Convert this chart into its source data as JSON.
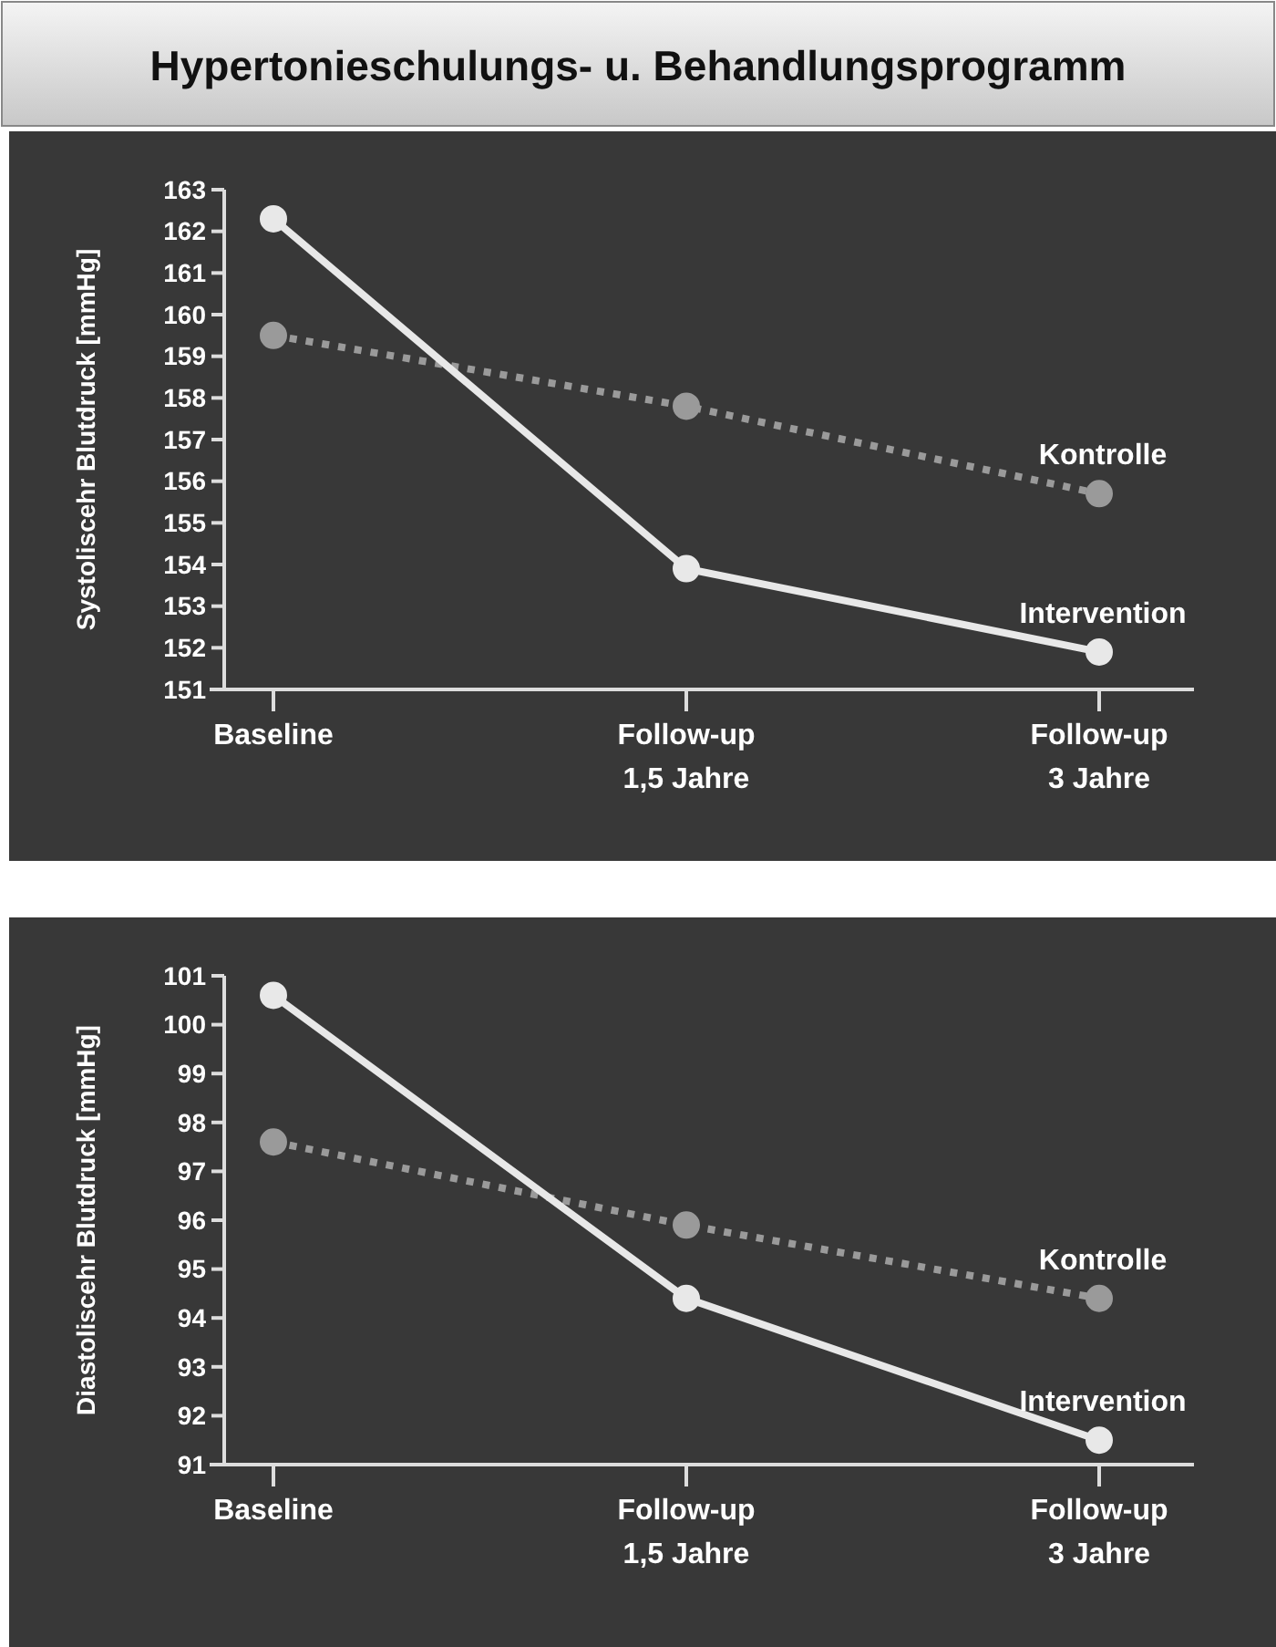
{
  "chart_data": [
    {
      "type": "line",
      "title": "Hypertonieschulungs- u. Behandlungsprogramm",
      "ylabel": "Systoliscehr Blutdruck [mmHg]",
      "categories": [
        "Baseline",
        "Follow-up\n1,5 Jahre",
        "Follow-up\n3 Jahre"
      ],
      "ylim": [
        151,
        163
      ],
      "yticks": [
        151,
        152,
        153,
        154,
        155,
        156,
        157,
        158,
        159,
        160,
        161,
        162,
        163
      ],
      "marker": "circle",
      "grid": false,
      "legend": false,
      "series": [
        {
          "name": "Kontrolle",
          "color": "#9a9a9a",
          "line_style": "dotted",
          "values": [
            159.5,
            157.8,
            155.7
          ]
        },
        {
          "name": "Intervention",
          "color": "#e8e8e8",
          "line_style": "solid",
          "values": [
            162.3,
            153.9,
            151.9
          ]
        }
      ]
    },
    {
      "type": "line",
      "ylabel": "Diastoliscehr Blutdruck [mmHg]",
      "categories": [
        "Baseline",
        "Follow-up\n1,5 Jahre",
        "Follow-up\n3 Jahre"
      ],
      "ylim": [
        91,
        101
      ],
      "yticks": [
        91,
        92,
        93,
        94,
        95,
        96,
        97,
        98,
        99,
        100,
        101
      ],
      "marker": "circle",
      "grid": false,
      "legend": false,
      "series": [
        {
          "name": "Kontrolle",
          "color": "#9a9a9a",
          "line_style": "dotted",
          "values": [
            97.6,
            95.9,
            94.4
          ]
        },
        {
          "name": "Intervention",
          "color": "#e8e8e8",
          "line_style": "solid",
          "values": [
            100.6,
            94.4,
            91.5
          ]
        }
      ]
    }
  ]
}
